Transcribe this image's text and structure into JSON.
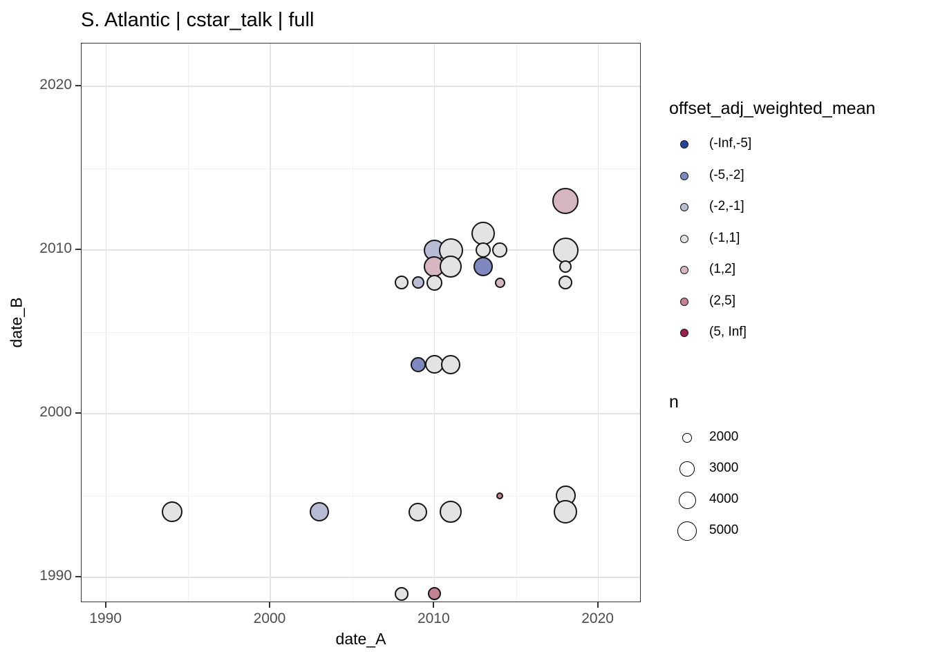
{
  "page": {
    "title": "S. Atlantic | cstar_talk | full"
  },
  "axes": {
    "x": {
      "label": "date_A",
      "major_ticks": [
        1990,
        2000,
        2010,
        2020
      ],
      "minor_ticks": [
        1995,
        2005,
        2015
      ],
      "range": [
        1988.4,
        2022.7
      ]
    },
    "y": {
      "label": "date_B",
      "major_ticks": [
        1990,
        2000,
        2010,
        2020
      ],
      "minor_ticks": [
        1995,
        2005,
        2015
      ],
      "range": [
        1988.4,
        2022.6
      ]
    }
  },
  "legend_color": {
    "title": "offset_adj_weighted_mean",
    "items": [
      {
        "label": "(-Inf,-5]",
        "color": "#24439b"
      },
      {
        "label": "(-5,-2]",
        "color": "#8089bf"
      },
      {
        "label": "(-2,-1]",
        "color": "#b7bbd3"
      },
      {
        "label": "(-1,1]",
        "color": "#e3e3e3"
      },
      {
        "label": "(1,2]",
        "color": "#d6b6c0"
      },
      {
        "label": "(2,5]",
        "color": "#c28291"
      },
      {
        "label": "(5, Inf]",
        "color": "#97204d"
      }
    ]
  },
  "legend_size": {
    "title": "n",
    "items": [
      {
        "label": "2000",
        "r": 6.8
      },
      {
        "label": "3000",
        "r": 10.8
      },
      {
        "label": "4000",
        "r": 12.5
      },
      {
        "label": "5000",
        "r": 14.2
      }
    ]
  },
  "chart_data": {
    "type": "scatter",
    "title": "S. Atlantic | cstar_talk | full",
    "xlabel": "date_A",
    "ylabel": "date_B",
    "x_range": [
      1988.4,
      2022.7
    ],
    "y_range": [
      1988.4,
      2022.6
    ],
    "grid": "major+minor",
    "legend_position": "right",
    "color_variable": "offset_adj_weighted_mean",
    "size_variable": "n",
    "points": [
      {
        "date_A": 2018,
        "date_B": 2013,
        "bin": "(1,2]",
        "n": 8500,
        "r": 19
      },
      {
        "date_A": 2013,
        "date_B": 2011,
        "bin": "(-1,1]",
        "n": 7000,
        "r": 17
      },
      {
        "date_A": 2010,
        "date_B": 2010,
        "bin": "(-2,-1]",
        "n": 6000,
        "r": 15.5
      },
      {
        "date_A": 2011,
        "date_B": 2010,
        "bin": "(-1,1]",
        "n": 7500,
        "r": 17.5
      },
      {
        "date_A": 2013,
        "date_B": 2010,
        "bin": "(-1,1]",
        "n": 3000,
        "r": 11
      },
      {
        "date_A": 2014,
        "date_B": 2010,
        "bin": "(-1,1]",
        "n": 3000,
        "r": 11
      },
      {
        "date_A": 2018,
        "date_B": 2010,
        "bin": "(-1,1]",
        "n": 8000,
        "r": 18.5
      },
      {
        "date_A": 2010,
        "date_B": 2009,
        "bin": "(1,2]",
        "n": 5500,
        "r": 15
      },
      {
        "date_A": 2011,
        "date_B": 2009,
        "bin": "(-1,1]",
        "n": 6500,
        "r": 16
      },
      {
        "date_A": 2013,
        "date_B": 2009,
        "bin": "(-5,-2]",
        "n": 5000,
        "r": 14
      },
      {
        "date_A": 2018,
        "date_B": 2009,
        "bin": "(-1,1]",
        "n": 2500,
        "r": 9
      },
      {
        "date_A": 2008,
        "date_B": 2008,
        "bin": "(-1,1]",
        "n": 2750,
        "r": 10
      },
      {
        "date_A": 2009,
        "date_B": 2008,
        "bin": "(-2,-1]",
        "n": 2500,
        "r": 9
      },
      {
        "date_A": 2010,
        "date_B": 2008,
        "bin": "(-1,1]",
        "n": 3500,
        "r": 11.5
      },
      {
        "date_A": 2014,
        "date_B": 2008,
        "bin": "(1,2]",
        "n": 2000,
        "r": 7.5
      },
      {
        "date_A": 2018,
        "date_B": 2008,
        "bin": "(-1,1]",
        "n": 2750,
        "r": 10
      },
      {
        "date_A": 2009,
        "date_B": 2003,
        "bin": "(-5,-2]",
        "n": 3000,
        "r": 11
      },
      {
        "date_A": 2010,
        "date_B": 2003,
        "bin": "(-1,1]",
        "n": 4500,
        "r": 13.5
      },
      {
        "date_A": 2011,
        "date_B": 2003,
        "bin": "(-1,1]",
        "n": 5000,
        "r": 14
      },
      {
        "date_A": 2014,
        "date_B": 1995,
        "bin": "(2,5]",
        "n": 1500,
        "r": 5
      },
      {
        "date_A": 2018,
        "date_B": 1995,
        "bin": "(-1,1]",
        "n": 5250,
        "r": 14.5
      },
      {
        "date_A": 1994,
        "date_B": 1994,
        "bin": "(-1,1]",
        "n": 5500,
        "r": 15
      },
      {
        "date_A": 2003,
        "date_B": 1994,
        "bin": "(-2,-1]",
        "n": 5000,
        "r": 14
      },
      {
        "date_A": 2009,
        "date_B": 1994,
        "bin": "(-1,1]",
        "n": 4500,
        "r": 13.5
      },
      {
        "date_A": 2011,
        "date_B": 1994,
        "bin": "(-1,1]",
        "n": 6500,
        "r": 16
      },
      {
        "date_A": 2018,
        "date_B": 1994,
        "bin": "(-1,1]",
        "n": 7000,
        "r": 17
      },
      {
        "date_A": 2008,
        "date_B": 1989,
        "bin": "(-1,1]",
        "n": 2750,
        "r": 10
      },
      {
        "date_A": 2010,
        "date_B": 1989,
        "bin": "(2,5]",
        "n": 2600,
        "r": 9.5
      }
    ]
  },
  "style": {
    "point_stroke": "#161616",
    "panel_border": "#333333",
    "grid_major": "#e3e3e3",
    "grid_minor": "#f0f0f0",
    "tick_color": "#333333",
    "tick_label_color": "#4d4d4d",
    "background": "#ffffff"
  }
}
